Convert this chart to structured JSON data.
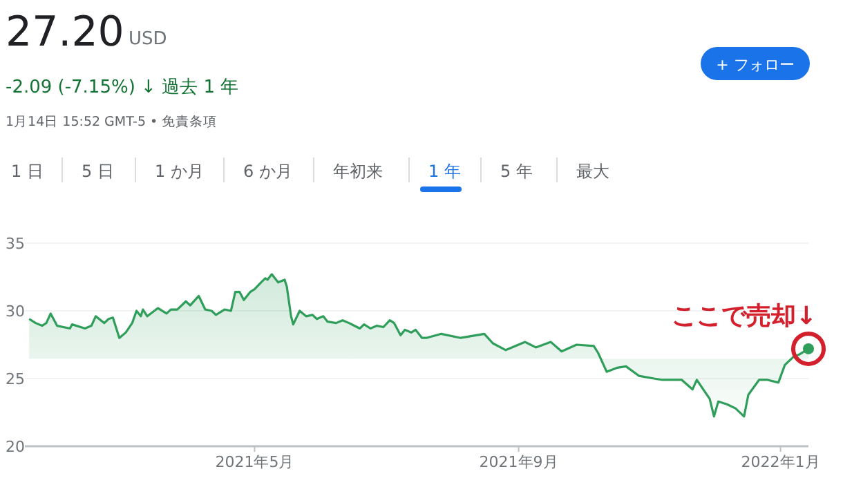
{
  "chart_data": {
    "type": "area",
    "title": "27.20",
    "annotations": [
      "USD",
      "-2.09 (-7.15%) ↓ 過去 1 年",
      "1月14日 15:52 GMT-5 • 免責条項",
      "+ フォロー",
      "1 日",
      "5 日",
      "1 か月",
      "6 か月",
      "年初来",
      "1 年",
      "5 年",
      "最大",
      {
        "text": "ここで売却↓",
        "x": "2022-01-14",
        "y": 27.2
      }
    ],
    "x": [
      "2021-01-16",
      "2021-01-19",
      "2021-01-22",
      "2021-01-24",
      "2021-01-26",
      "2021-01-29",
      "2021-02-04",
      "2021-02-05",
      "2021-02-11",
      "2021-02-14",
      "2021-02-16",
      "2021-02-20",
      "2021-02-22",
      "2021-02-24",
      "2021-02-27",
      "2021-03-02",
      "2021-03-05",
      "2021-03-07",
      "2021-03-09",
      "2021-03-10",
      "2021-03-12",
      "2021-03-17",
      "2021-03-21",
      "2021-03-23",
      "2021-03-26",
      "2021-03-30",
      "2021-04-01",
      "2021-04-05",
      "2021-04-08",
      "2021-04-11",
      "2021-04-13",
      "2021-04-17",
      "2021-04-20",
      "2021-04-22",
      "2021-04-24",
      "2021-04-26",
      "2021-04-29",
      "2021-05-01",
      "2021-05-04",
      "2021-05-06",
      "2021-05-07",
      "2021-05-09",
      "2021-05-12",
      "2021-05-15",
      "2021-05-16",
      "2021-05-18",
      "2021-05-19",
      "2021-05-22",
      "2021-05-25",
      "2021-05-28",
      "2021-05-30",
      "2021-06-02",
      "2021-06-04",
      "2021-06-08",
      "2021-06-11",
      "2021-06-14",
      "2021-06-19",
      "2021-06-21",
      "2021-06-24",
      "2021-06-27",
      "2021-06-30",
      "2021-07-03",
      "2021-07-05",
      "2021-07-08",
      "2021-07-10",
      "2021-07-13",
      "2021-07-15",
      "2021-07-18",
      "2021-07-20",
      "2021-07-27",
      "2021-08-05",
      "2021-08-16",
      "2021-08-20",
      "2021-08-26",
      "2021-09-04",
      "2021-09-09",
      "2021-09-16",
      "2021-09-21",
      "2021-09-28",
      "2021-10-06",
      "2021-10-08",
      "2021-10-12",
      "2021-10-17",
      "2021-10-21",
      "2021-10-27",
      "2021-11-03",
      "2021-11-07",
      "2021-11-16",
      "2021-11-21",
      "2021-11-23",
      "2021-11-29",
      "2021-12-01",
      "2021-12-03",
      "2021-12-07",
      "2021-12-11",
      "2021-12-15",
      "2021-12-17",
      "2021-12-22",
      "2021-12-26",
      "2021-12-31",
      "2022-01-03",
      "2022-01-07",
      "2022-01-10",
      "2022-01-14"
    ],
    "series": [
      {
        "color": "#2e9e5a",
        "values": [
          29.4,
          29.1,
          28.9,
          29.1,
          29.8,
          28.9,
          28.7,
          29.0,
          28.7,
          28.9,
          29.6,
          29.1,
          29.4,
          29.5,
          28.0,
          28.4,
          29.1,
          30.0,
          29.6,
          30.1,
          29.6,
          30.2,
          29.8,
          30.1,
          30.1,
          30.7,
          30.4,
          31.1,
          30.1,
          30.0,
          29.7,
          30.1,
          30.0,
          31.4,
          31.4,
          30.8,
          31.4,
          31.6,
          32.1,
          32.4,
          32.3,
          32.7,
          32.1,
          32.3,
          31.8,
          29.6,
          29.0,
          30.0,
          29.6,
          29.7,
          29.4,
          29.6,
          29.2,
          29.1,
          29.3,
          29.1,
          28.7,
          29.0,
          28.7,
          28.9,
          28.8,
          29.3,
          29.1,
          28.2,
          28.6,
          28.4,
          28.6,
          28.0,
          28.0,
          28.3,
          28.0,
          28.3,
          27.6,
          27.1,
          27.7,
          27.3,
          27.7,
          27.0,
          27.5,
          27.4,
          26.9,
          25.5,
          25.8,
          25.9,
          25.2,
          25.0,
          24.9,
          24.9,
          24.2,
          24.9,
          23.5,
          22.2,
          23.3,
          23.1,
          22.8,
          22.2,
          23.8,
          24.9,
          24.9,
          24.7,
          26.0,
          26.6,
          26.8,
          27.2
        ]
      }
    ],
    "xlim": [
      "2021-01-14",
      "2022-01-14"
    ],
    "xticks": [
      {
        "value": "2021-05-01",
        "label": "2021年5月"
      },
      {
        "value": "2021-09-01",
        "label": "2021年9月"
      },
      {
        "value": "2022-01-01",
        "label": "2022年1月"
      }
    ],
    "ylim": [
      20,
      35
    ],
    "yticks": [
      20,
      25,
      30,
      35
    ],
    "grid": "y"
  }
}
